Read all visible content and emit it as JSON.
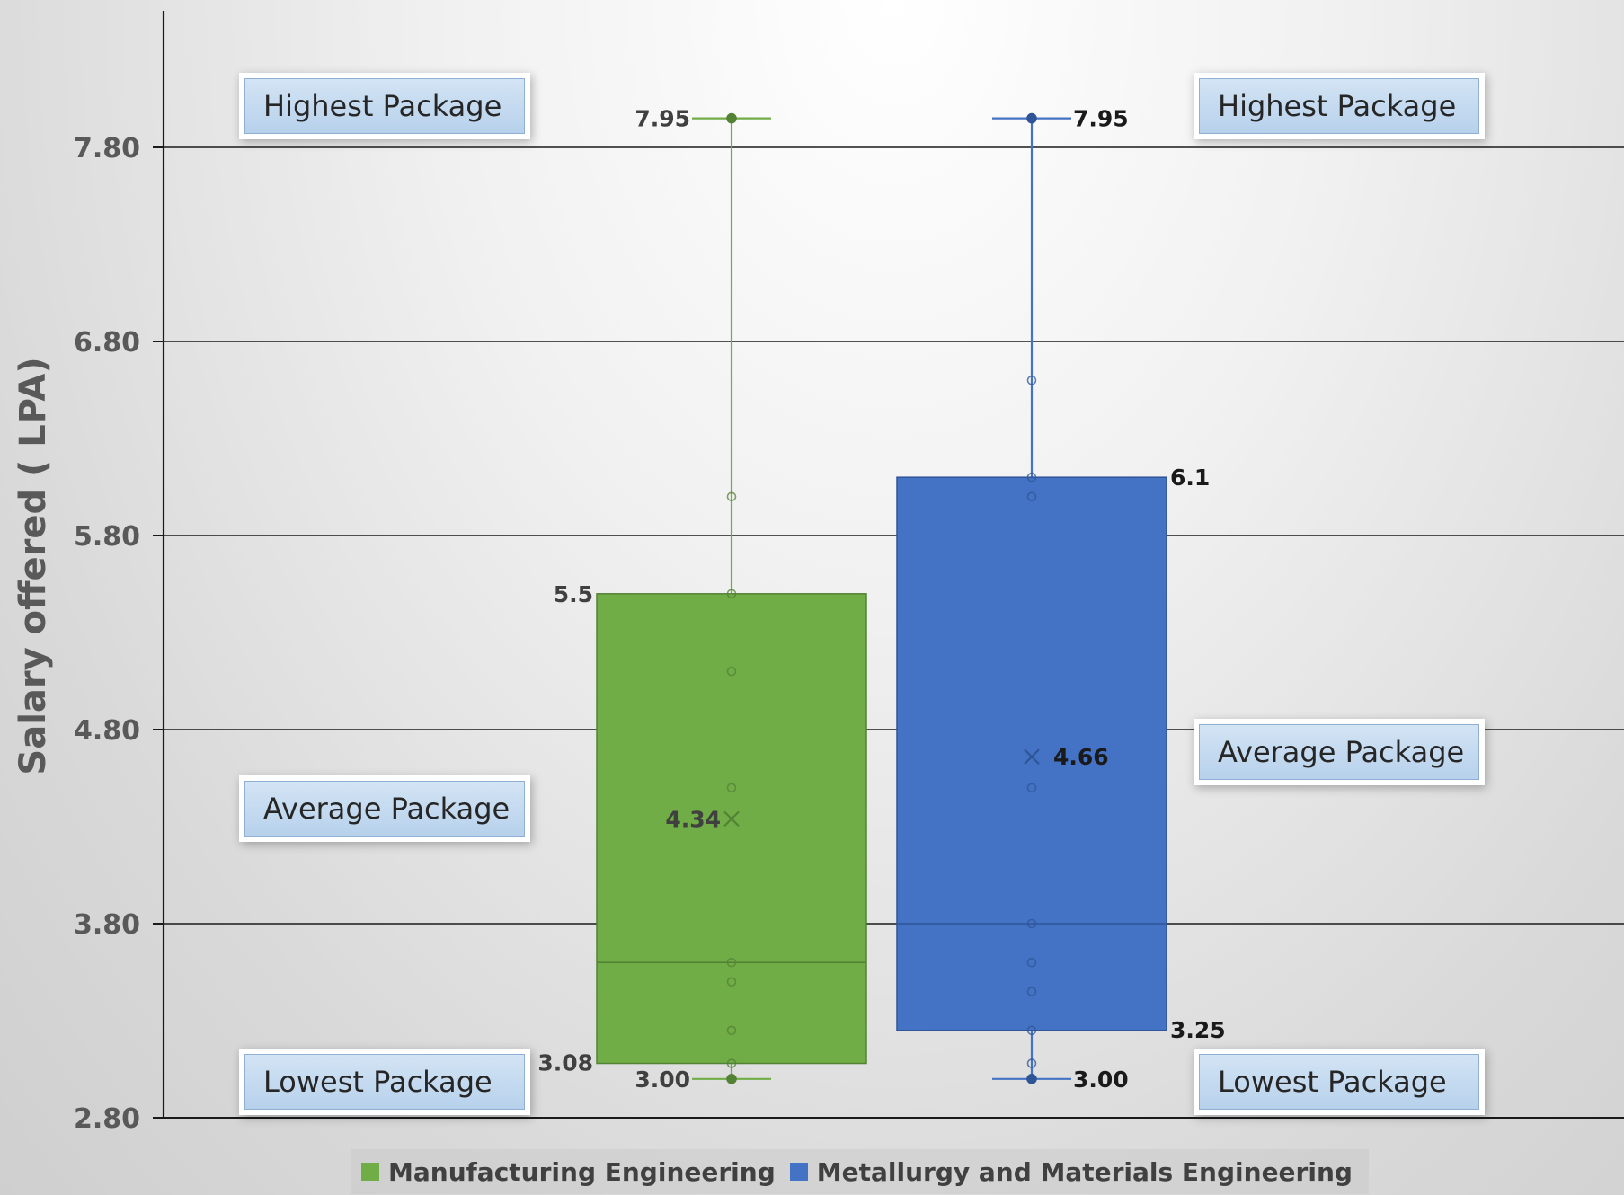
{
  "chart_data": {
    "type": "box",
    "ylabel": "Salary offered ( LPA)",
    "ylim": [
      2.8,
      8.6
    ],
    "yticks": [
      "2.80",
      "3.80",
      "4.80",
      "5.80",
      "6.80",
      "7.80"
    ],
    "grid": true,
    "legend_position": "bottom",
    "series": [
      {
        "name": "Manufacturing Engineering",
        "color": "#70ad47",
        "min": 3.0,
        "q1": 3.08,
        "median": 3.6,
        "q3": 5.5,
        "max": 7.95,
        "mean": 4.34,
        "points": [
          3.0,
          3.08,
          3.25,
          3.5,
          3.6,
          4.5,
          5.1,
          5.5,
          6.0,
          7.95
        ],
        "labels": {
          "max": "7.95",
          "q3": "5.5",
          "mean": "4.34",
          "q1": "3.08",
          "min": "3.00"
        }
      },
      {
        "name": "Metallurgy and Materials Engineering",
        "color": "#4472c4",
        "min": 3.0,
        "q1": 3.25,
        "median": 3.8,
        "q3": 6.1,
        "max": 7.95,
        "mean": 4.66,
        "points": [
          3.0,
          3.08,
          3.25,
          3.45,
          3.6,
          3.8,
          4.5,
          6.0,
          6.1,
          6.6,
          7.95
        ],
        "labels": {
          "max": "7.95",
          "q3": "6.1",
          "mean": "4.66",
          "q1": "3.25",
          "min": "3.00"
        }
      }
    ]
  },
  "annotations": {
    "highest_left": "Highest Package",
    "average_left": "Average Package",
    "lowest_left": "Lowest Package",
    "highest_right": "Highest Package",
    "average_right": "Average Package",
    "lowest_right": "Lowest Package"
  }
}
